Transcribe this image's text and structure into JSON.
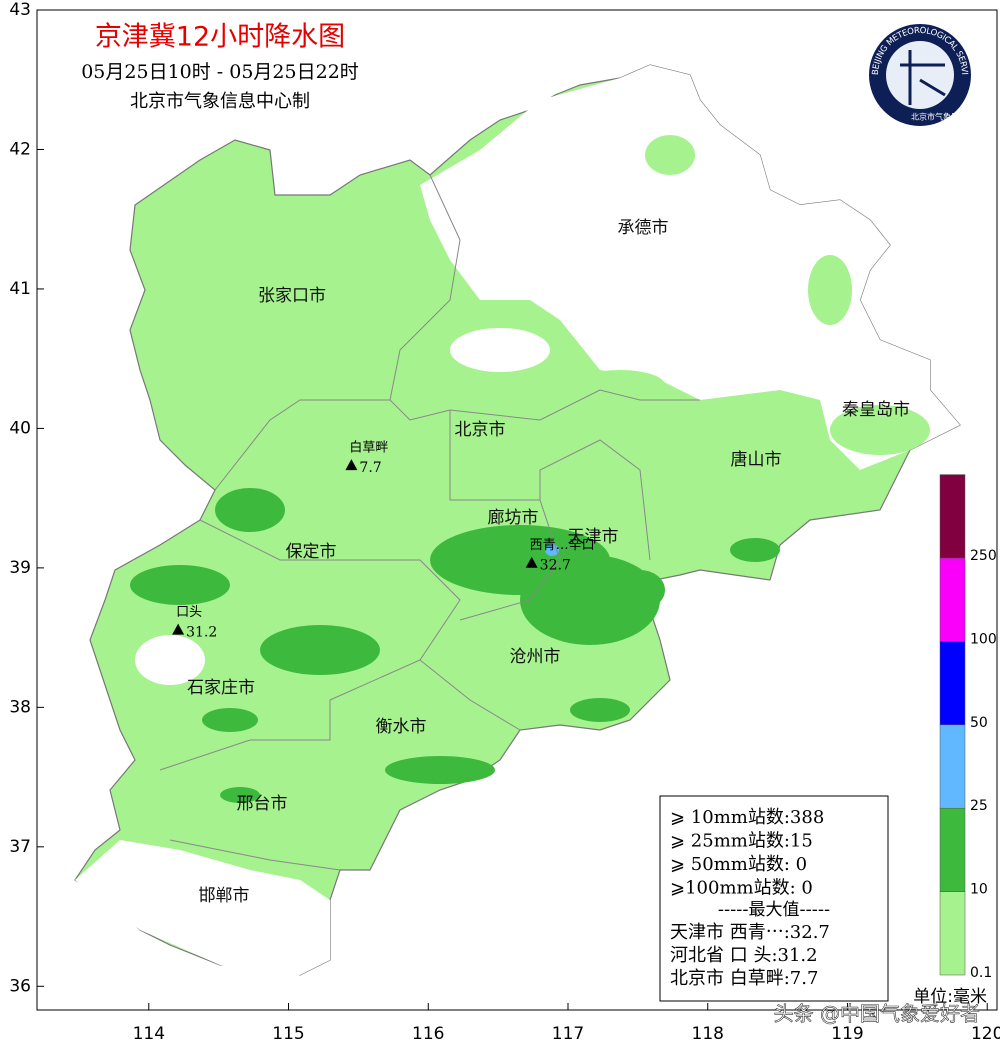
{
  "header": {
    "title": "京津冀12小时降水图",
    "time_range": "05月25日10时 - 05月25日22时",
    "producer": "北京市气象信息中心制"
  },
  "logo": {
    "ring_text": "BEIJING METEOROLOGICAL SERVICE",
    "cn_text": "北京市气象局"
  },
  "axes": {
    "xlim": [
      113.2,
      120.07
    ],
    "ylim": [
      35.83,
      43.0
    ],
    "xticks": [
      114,
      115,
      116,
      117,
      118,
      119,
      120
    ],
    "yticks": [
      36,
      37,
      38,
      39,
      40,
      41,
      42,
      43
    ]
  },
  "cities": [
    "承德市",
    "张家口市",
    "北京市",
    "秦皇岛市",
    "唐山市",
    "廊坊市",
    "天津市",
    "保定市",
    "沧州市",
    "石家庄市",
    "衡水市",
    "邢台市",
    "邯郸市"
  ],
  "stations": [
    {
      "name": "白草畔",
      "lon": 115.45,
      "lat": 39.73,
      "value": 7.7
    },
    {
      "name": "西青…辛口",
      "lon": 116.74,
      "lat": 39.03,
      "value": 32.7
    },
    {
      "name": "口头",
      "lon": 114.21,
      "lat": 38.55,
      "value": 31.2
    }
  ],
  "stats": {
    "rows": [
      "⩾ 10mm站数:388",
      "⩾ 25mm站数:15",
      "⩾ 50mm站数: 0",
      "⩾100mm站数: 0"
    ],
    "max_header": "-----最大值-----",
    "max_rows": [
      "天津市 西青⋯:32.7",
      "河北省 口  头:31.2",
      "北京市 白草畔:7.7"
    ]
  },
  "legend": {
    "levels": [
      0.1,
      10,
      25,
      50,
      100,
      250
    ],
    "colors": [
      "#a6f28f",
      "#3dba3d",
      "#61b8ff",
      "#0000fe",
      "#fa00fa",
      "#800040"
    ],
    "unit": "单位:毫米"
  },
  "watermark": "头条 @中国气象爱好者"
}
